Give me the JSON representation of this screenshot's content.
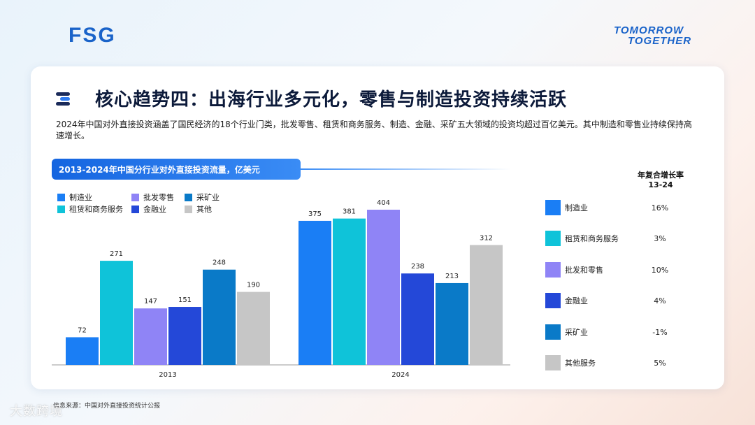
{
  "brand": {
    "logo": "FSG",
    "tagline_line1": "TOMORROW",
    "tagline_line2": "TOGETHER"
  },
  "header": {
    "title": "核心趋势四：出海行业多元化，零售与制造投资持续活跃",
    "description": "2024年中国对外直接投资涵盖了国民经济的18个行业门类，批发零售、租赁和商务服务、制造、金融、采矿五大领域的投资均超过百亿美元。其中制造和零售业持续保持高速增长。"
  },
  "chart_data": {
    "type": "bar",
    "title": "2013-2024年中国分行业对外直接投资流量，亿美元",
    "categories": [
      "2013",
      "2024"
    ],
    "series": [
      {
        "name": "制造业",
        "values": [
          72,
          375
        ],
        "color": "#1a7ef5"
      },
      {
        "name": "租赁和商务服务",
        "values": [
          271,
          381
        ],
        "color": "#0fc3d9"
      },
      {
        "name": "批发零售",
        "values": [
          147,
          404
        ],
        "color": "#8f84f6"
      },
      {
        "name": "金融业",
        "values": [
          151,
          238
        ],
        "color": "#2448d8"
      },
      {
        "name": "采矿业",
        "values": [
          248,
          213
        ],
        "color": "#0a7ac8"
      },
      {
        "name": "其他",
        "values": [
          190,
          312
        ],
        "color": "#c6c6c6"
      }
    ],
    "ylim": [
      0,
      420
    ],
    "grid": false,
    "legend": "top-left"
  },
  "legend_order": [
    {
      "name": "制造业",
      "color": "#1a7ef5"
    },
    {
      "name": "批发零售",
      "color": "#8f84f6"
    },
    {
      "name": "采矿业",
      "color": "#0a7ac8"
    },
    {
      "name": "租赁和商务服务",
      "color": "#0fc3d9"
    },
    {
      "name": "金融业",
      "color": "#2448d8"
    },
    {
      "name": "其他",
      "color": "#c6c6c6"
    }
  ],
  "cagr": {
    "title_line1": "年复合增长率",
    "title_line2": "13-24",
    "rows": [
      {
        "name": "制造业",
        "value": "16%",
        "color": "#1a7ef5"
      },
      {
        "name": "租赁和商务服务",
        "value": "3%",
        "color": "#0fc3d9"
      },
      {
        "name": "批发和零售",
        "value": "10%",
        "color": "#8f84f6"
      },
      {
        "name": "金融业",
        "value": "4%",
        "color": "#2448d8"
      },
      {
        "name": "采矿业",
        "value": "-1%",
        "color": "#0a7ac8"
      },
      {
        "name": "其他服务",
        "value": "5%",
        "color": "#c6c6c6"
      }
    ]
  },
  "footer": {
    "source": "信息来源：中国对外直接投资统计公报",
    "watermark": "大数跨境"
  }
}
